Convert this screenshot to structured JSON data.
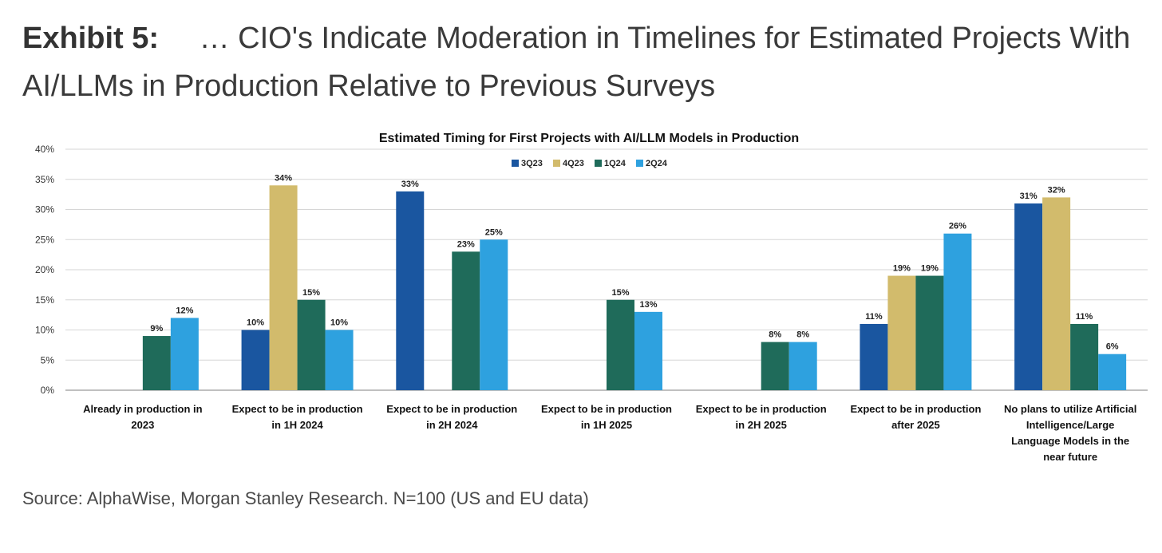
{
  "header": {
    "label": "Exhibit 5:",
    "title": "… CIO's Indicate Moderation in Timelines for Estimated Projects With AI/LLMs in Production Relative to Previous Surveys"
  },
  "source": "Source: AlphaWise, Morgan Stanley Research. N=100 (US and EU data)",
  "chart_data": {
    "type": "bar",
    "title": "Estimated Timing for First Projects with AI/LLM Models in Production",
    "xlabel": "",
    "ylabel": "",
    "ylim": [
      0,
      40
    ],
    "yticks": [
      "0%",
      "5%",
      "10%",
      "15%",
      "20%",
      "25%",
      "30%",
      "35%",
      "40%"
    ],
    "grid": true,
    "legend_position": "top-center",
    "categories": [
      [
        "Already in production in",
        "2023"
      ],
      [
        "Expect to be in production",
        "in 1H 2024"
      ],
      [
        "Expect to be in production",
        "in 2H 2024"
      ],
      [
        "Expect to be in production",
        "in 1H 2025"
      ],
      [
        "Expect to be in production",
        "in 2H 2025"
      ],
      [
        "Expect to be in production",
        "after 2025"
      ],
      [
        "No plans to utilize Artificial",
        "Intelligence/Large",
        "Language Models in the",
        "near future"
      ]
    ],
    "series": [
      {
        "name": "3Q23",
        "color": "#1a56a0",
        "values": [
          null,
          10,
          33,
          null,
          null,
          11,
          31
        ]
      },
      {
        "name": "4Q23",
        "color": "#d2bb6c",
        "values": [
          null,
          34,
          null,
          null,
          null,
          19,
          32
        ]
      },
      {
        "name": "1Q24",
        "color": "#1f6b5a",
        "values": [
          9,
          15,
          23,
          15,
          8,
          19,
          11
        ]
      },
      {
        "name": "2Q24",
        "color": "#2ea1df",
        "values": [
          12,
          10,
          25,
          13,
          8,
          26,
          6
        ]
      }
    ]
  }
}
